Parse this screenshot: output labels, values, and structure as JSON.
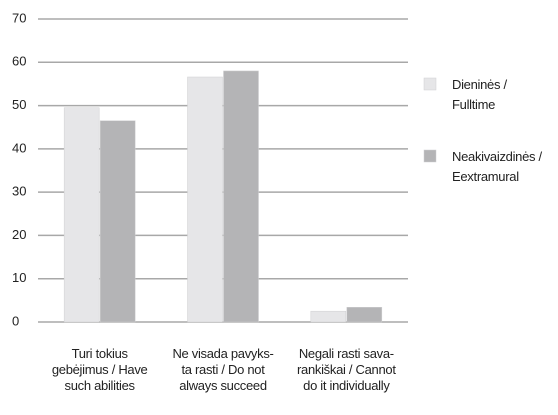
{
  "chart_data": {
    "type": "bar",
    "categories": [
      "Turi tokius\ngebėjimus / Have\nsuch abilities",
      "Ne visada pavyks-\nta rasti / Do not\nalways succeed",
      "Negali rasti sava-\nrankiškai / Cannot\ndo it individually"
    ],
    "series": [
      {
        "name": "Dieninės /\nFulltime",
        "color": "#e6e6e8",
        "values": [
          49.5,
          56.6,
          2.5
        ]
      },
      {
        "name": "Neakivaizdinės /\nEextramural",
        "color": "#b4b4b6",
        "values": [
          46.5,
          58,
          3.4
        ]
      }
    ],
    "ylim": [
      0,
      70
    ],
    "yticks": [
      0,
      10,
      20,
      30,
      40,
      50,
      60,
      70
    ],
    "grid": true,
    "legend": "right"
  }
}
